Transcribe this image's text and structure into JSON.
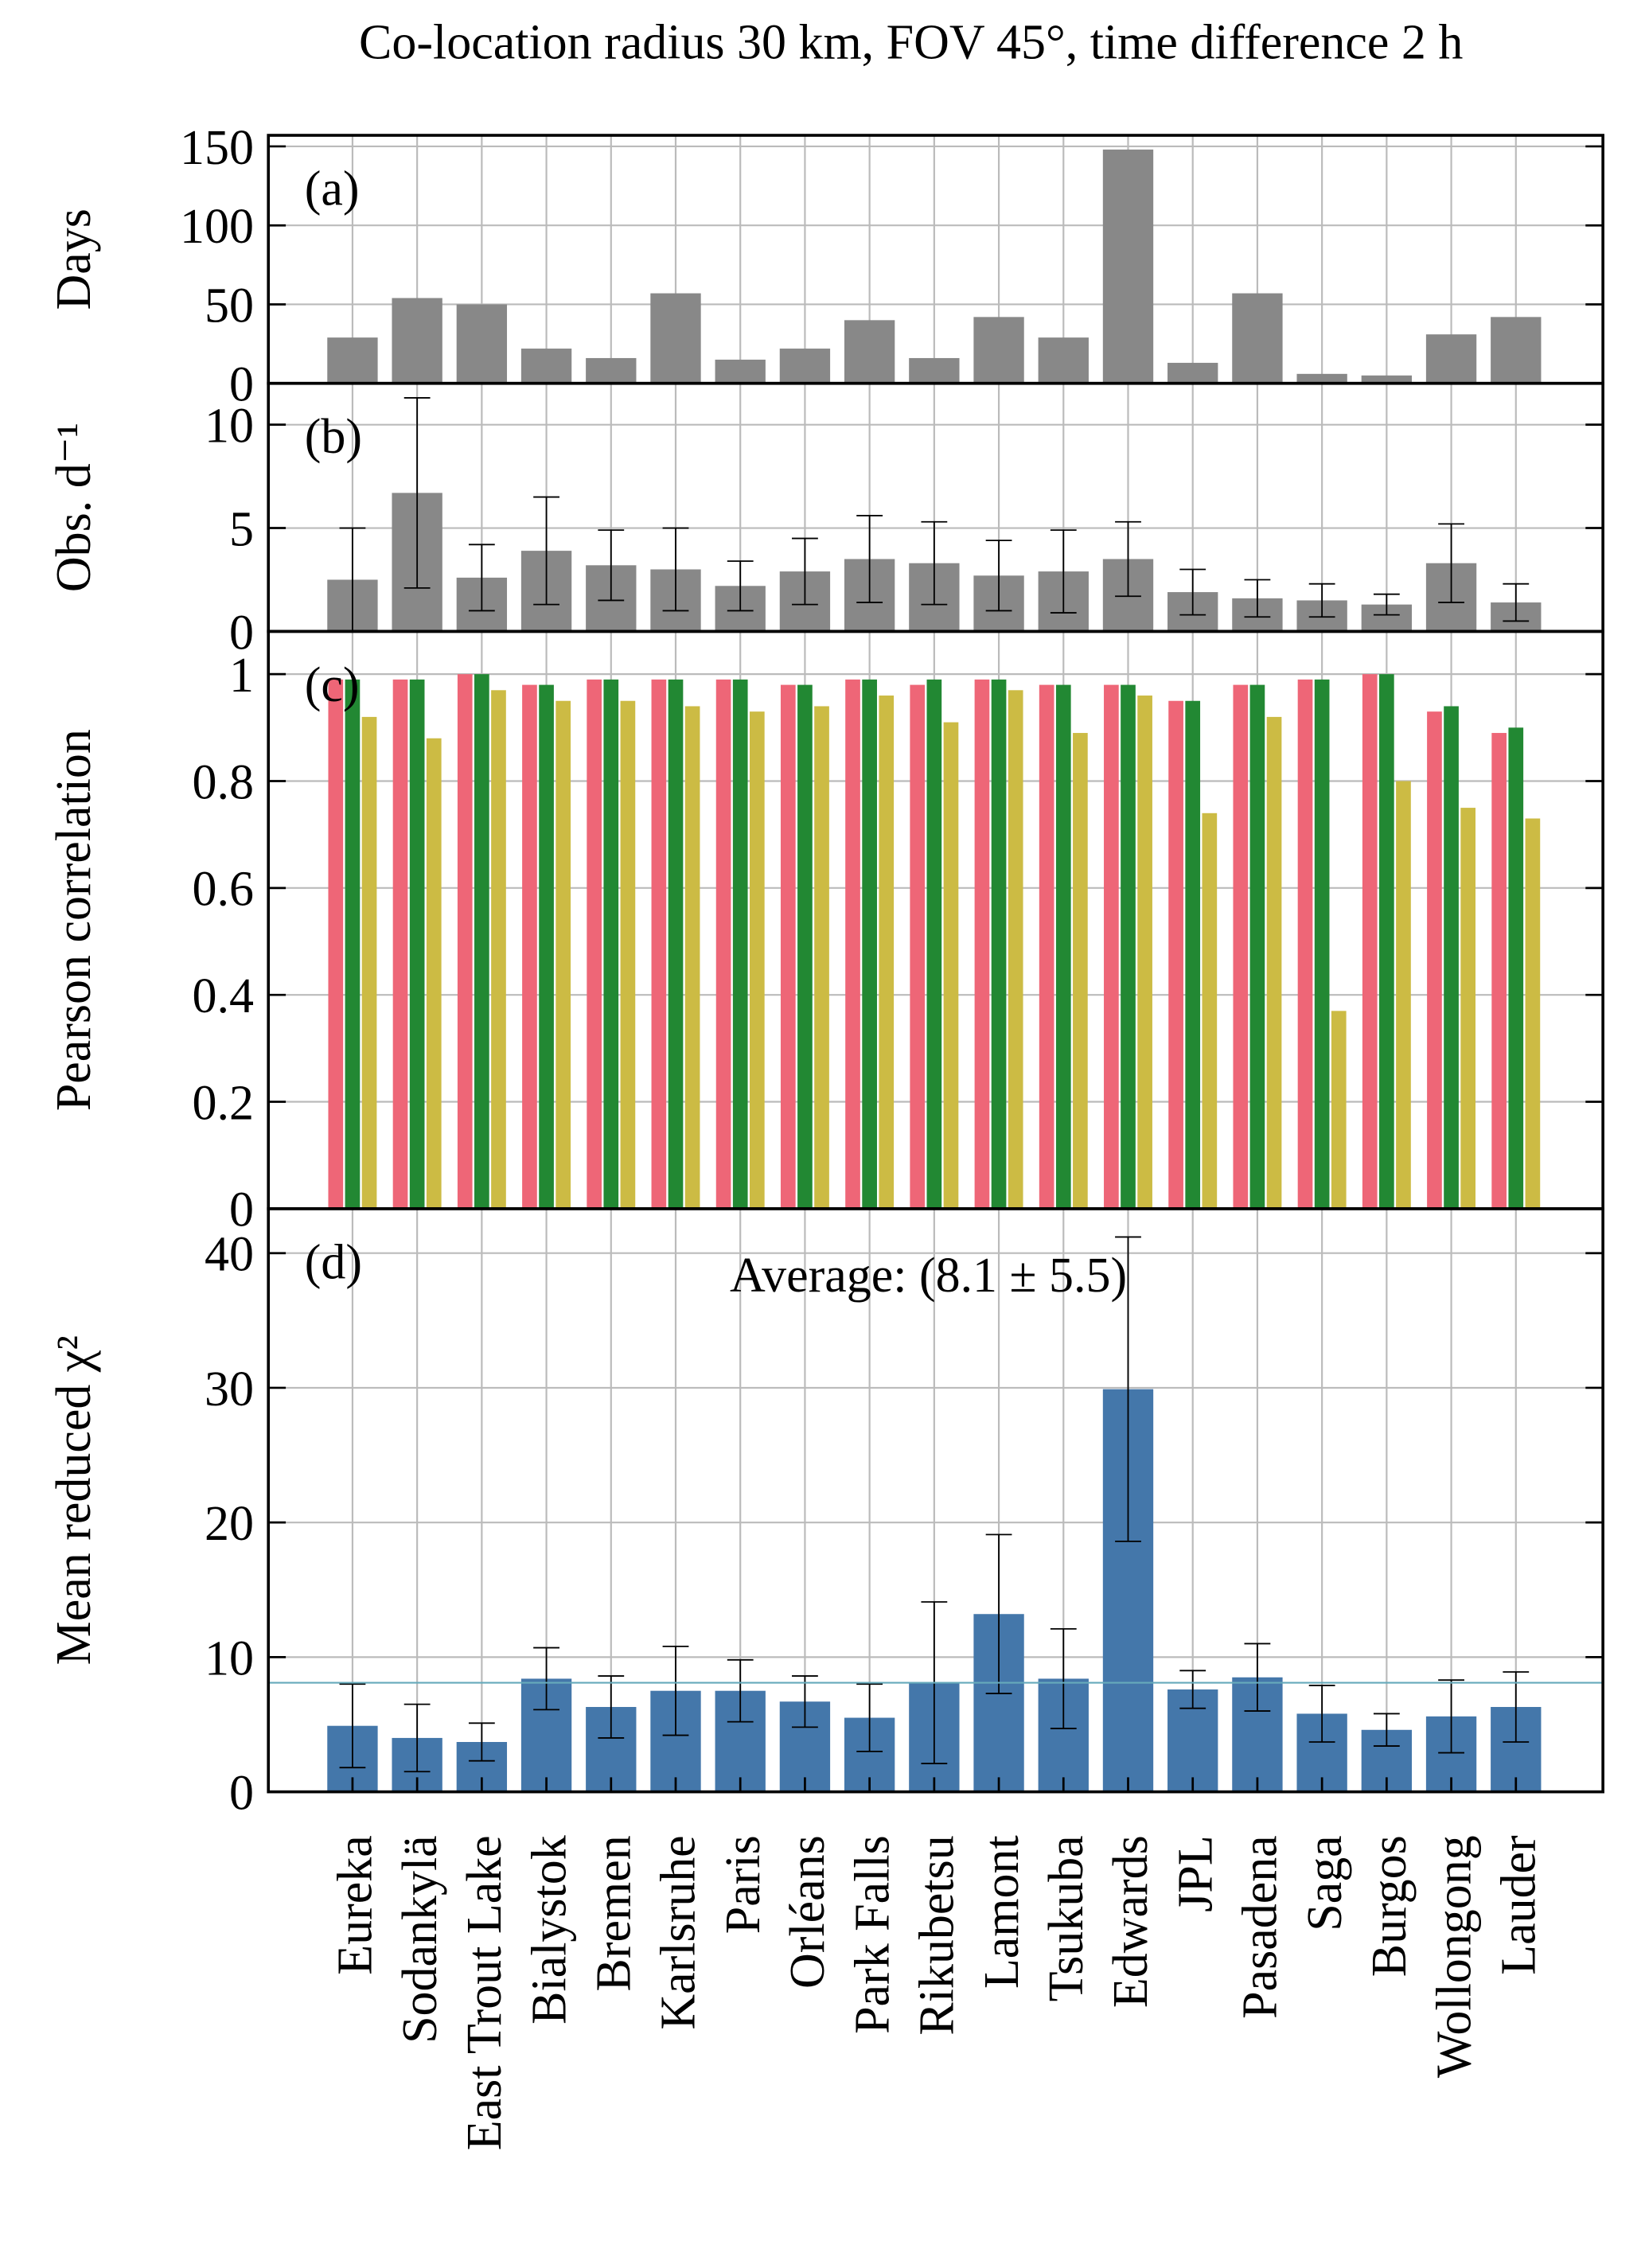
{
  "title": "Co-location radius 30 km, FOV 45°, time difference 2 h",
  "chart_data": [
    {
      "type": "bar",
      "panel_label": "(a)",
      "ylabel": "Days",
      "color": "#888888",
      "values": [
        29,
        54,
        50,
        22,
        16,
        57,
        15,
        22,
        40,
        16,
        42,
        29,
        148,
        13,
        57,
        6,
        5,
        31,
        42
      ],
      "ylim": [
        0,
        157
      ],
      "yticks": [
        0,
        50,
        100,
        150
      ],
      "grid": true
    },
    {
      "type": "errorbar",
      "panel_label": "(b)",
      "ylabel": "Obs. d⁻¹",
      "color": "#888888",
      "values": [
        2.5,
        6.7,
        2.6,
        3.9,
        3.2,
        3.0,
        2.2,
        2.9,
        3.5,
        3.3,
        2.7,
        2.9,
        3.5,
        1.9,
        1.6,
        1.5,
        1.3,
        3.3,
        1.4
      ],
      "errors": [
        2.5,
        4.6,
        1.6,
        2.6,
        1.7,
        2.0,
        1.2,
        1.6,
        2.1,
        2.0,
        1.7,
        2.0,
        1.8,
        1.1,
        0.9,
        0.8,
        0.5,
        1.9,
        0.9
      ],
      "ylim": [
        0,
        12
      ],
      "yticks": [
        0,
        5,
        10
      ],
      "grid": true
    },
    {
      "type": "grouped",
      "panel_label": "(c)",
      "ylabel": "Pearson correlation",
      "series": [
        {
          "color": "#ee6677",
          "values": [
            0.99,
            0.99,
            1.0,
            0.98,
            0.99,
            0.99,
            0.99,
            0.98,
            0.99,
            0.98,
            0.99,
            0.98,
            0.98,
            0.95,
            0.98,
            0.99,
            1.0,
            0.93,
            0.89
          ]
        },
        {
          "color": "#228833",
          "values": [
            0.99,
            0.99,
            1.0,
            0.98,
            0.99,
            0.99,
            0.99,
            0.98,
            0.99,
            0.99,
            0.99,
            0.98,
            0.98,
            0.95,
            0.98,
            0.99,
            1.0,
            0.94,
            0.9
          ]
        },
        {
          "color": "#ccbb44",
          "values": [
            0.92,
            0.88,
            0.97,
            0.95,
            0.95,
            0.94,
            0.93,
            0.94,
            0.96,
            0.91,
            0.97,
            0.89,
            0.96,
            0.74,
            0.92,
            0.37,
            0.8,
            0.75,
            0.73
          ]
        }
      ],
      "ylim": [
        0,
        1.08
      ],
      "yticks": [
        0,
        0.2,
        0.4,
        0.6,
        0.8,
        1
      ],
      "grid": true
    },
    {
      "type": "errorbar",
      "panel_label": "(d)",
      "ylabel": "Mean reduced χ²",
      "color": "#4477aa",
      "annotation": "Average: (8.1 ± 5.5)",
      "average": 8.1,
      "average_color": "#66aabb",
      "categories": [
        "Eureka",
        "Sodankylä",
        "East Trout Lake",
        "Bialystok",
        "Bremen",
        "Karlsruhe",
        "Paris",
        "Orléans",
        "Park Falls",
        "Rikubetsu",
        "Lamont",
        "Tsukuba",
        "Edwards",
        "JPL",
        "Pasadena",
        "Saga",
        "Burgos",
        "Wollongong",
        "Lauder"
      ],
      "values": [
        4.9,
        4.0,
        3.7,
        8.4,
        6.3,
        7.5,
        7.5,
        6.7,
        5.5,
        8.1,
        13.2,
        8.4,
        29.9,
        7.6,
        8.5,
        5.8,
        4.6,
        5.6,
        6.3
      ],
      "errors": [
        3.1,
        2.5,
        1.4,
        2.3,
        2.3,
        3.3,
        2.3,
        1.9,
        2.5,
        6.0,
        5.9,
        3.7,
        11.3,
        1.4,
        2.5,
        2.1,
        1.2,
        2.7,
        2.6
      ],
      "ylim": [
        0,
        43.3
      ],
      "yticks": [
        0,
        10,
        20,
        30,
        40
      ],
      "grid": true
    }
  ]
}
